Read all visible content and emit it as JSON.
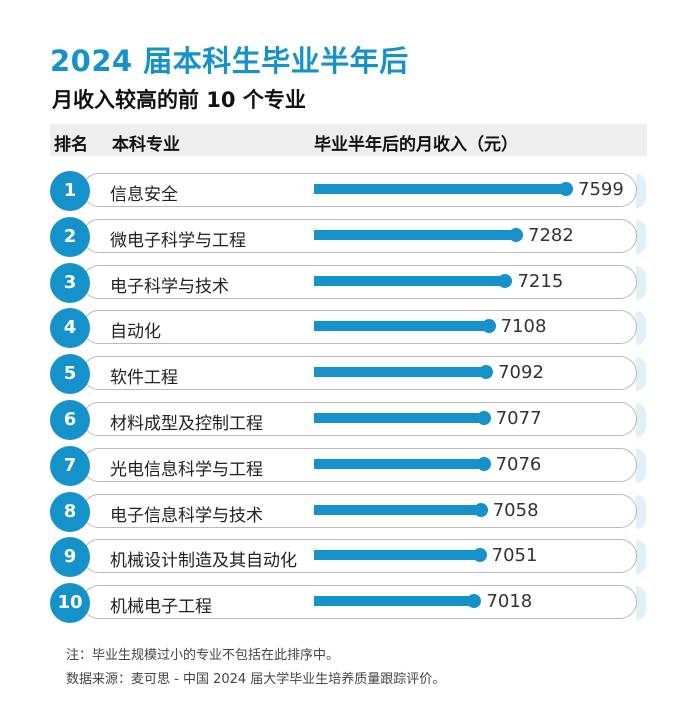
{
  "title": "2024 届本科生毕业半年后",
  "subtitle": "月收入较高的前 10 个专业",
  "header": {
    "rank": "排名",
    "major": "本科专业",
    "income": "毕业半年后的月收入（元）"
  },
  "chart_data": {
    "type": "bar",
    "orientation": "horizontal",
    "ranks": [
      "1",
      "2",
      "3",
      "4",
      "5",
      "6",
      "7",
      "8",
      "9",
      "10"
    ],
    "categories": [
      "信息安全",
      "微电子科学与工程",
      "电子科学与技术",
      "自动化",
      "软件工程",
      "材料成型及控制工程",
      "光电信息科学与工程",
      "电子信息科学与技术",
      "机械设计制造及其自动化",
      "机械电子工程"
    ],
    "values": [
      7599,
      7282,
      7215,
      7108,
      7092,
      7077,
      7076,
      7058,
      7051,
      7018
    ],
    "value_labels": [
      "7599",
      "7282",
      "7215",
      "7108",
      "7092",
      "7077",
      "7076",
      "7058",
      "7051",
      "7018"
    ],
    "bar_color": "#1592c9"
  },
  "notes": {
    "note": "注：毕业生规模过小的专业不包括在此排序中。",
    "source": "数据来源：麦可思 - 中国 2024 届大学毕业生培养质量跟踪评价。"
  }
}
